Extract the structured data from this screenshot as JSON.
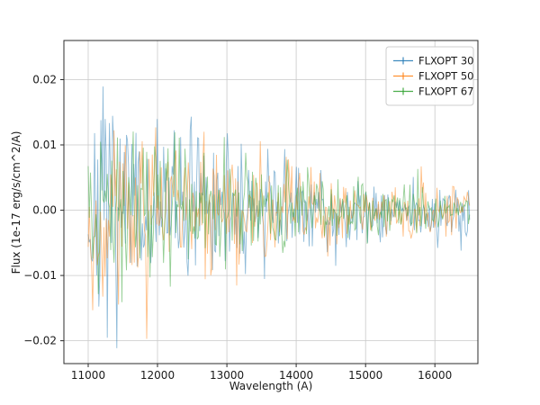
{
  "figure": {
    "background": "#ffffff"
  },
  "chart_data": {
    "type": "line",
    "title": "",
    "xlabel": "Wavelength (A)",
    "ylabel": "Flux (1e-17 erg/s/cm^2/A)",
    "xlim": [
      10650,
      16620
    ],
    "ylim": [
      -0.0235,
      0.026
    ],
    "xticks": [
      11000,
      12000,
      13000,
      14000,
      15000,
      16000
    ],
    "xtick_labels": [
      "11000",
      "12000",
      "13000",
      "14000",
      "15000",
      "16000"
    ],
    "yticks": [
      -0.02,
      -0.01,
      0.0,
      0.01,
      0.02
    ],
    "ytick_labels": [
      "−0.02",
      "−0.01",
      "0.00",
      "0.01",
      "0.02"
    ],
    "grid": true,
    "grid_color": "#c9c9c9",
    "spine_color": "#2b2b2b",
    "legend": {
      "position": "upper right",
      "border_color": "#cccccc",
      "background": "#ffffff"
    },
    "series": [
      {
        "label": "FLXOPT 30",
        "color": "#1f77b4",
        "alpha": 0.5,
        "marker": "errorbar-tick",
        "x_start": 11000,
        "x_end": 16500,
        "n_points": 360,
        "amp_start": 0.021,
        "amp_end": 0.0052,
        "decay_power": 1.7,
        "seed": 7,
        "representation": "noisy spectrum, amplitude decays from ~0.023 near 11000 A to ~0.005 near 16500 A, peak +0.023 at ~11050 A"
      },
      {
        "label": "FLXOPT 50",
        "color": "#ff7f0e",
        "alpha": 0.5,
        "marker": "errorbar-tick",
        "x_start": 11000,
        "x_end": 16500,
        "n_points": 340,
        "amp_start": 0.0198,
        "amp_end": 0.0046,
        "decay_power": 1.7,
        "seed": 19,
        "representation": "noisy spectrum, amplitude decays from ~0.020 near 11000 A to ~0.005 near 16500 A, trough -0.0195 at ~11050 A"
      },
      {
        "label": "FLXOPT 67",
        "color": "#2ca02c",
        "alpha": 0.5,
        "marker": "errorbar-tick",
        "x_start": 11000,
        "x_end": 16500,
        "n_points": 340,
        "amp_start": 0.018,
        "amp_end": 0.0044,
        "decay_power": 1.7,
        "seed": 41,
        "representation": "noisy spectrum, amplitude decays from ~0.018 near 11000 A to ~0.004 near 16500 A"
      }
    ]
  }
}
